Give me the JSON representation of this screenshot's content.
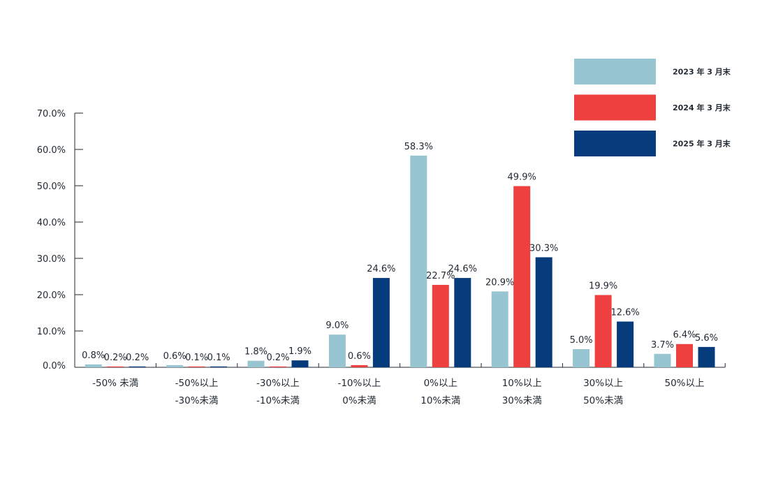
{
  "chart_data": {
    "type": "bar",
    "title": "",
    "xlabel": "",
    "ylabel": "",
    "ylim": [
      0,
      70
    ],
    "yticks": [
      "0.0%",
      "10.0%",
      "20.0%",
      "30.0%",
      "40.0%",
      "50.0%",
      "60.0%",
      "70.0%"
    ],
    "categories": [
      [
        "-50% 未満"
      ],
      [
        "-50%以上",
        "-30%未満"
      ],
      [
        "-30%以上",
        "-10%未満"
      ],
      [
        "-10%以上",
        "0%未満"
      ],
      [
        "0%以上",
        "10%未満"
      ],
      [
        "10%以上",
        "30%未満"
      ],
      [
        "30%以上",
        "50%未満"
      ],
      [
        "50%以上"
      ]
    ],
    "series": [
      {
        "name": "2023 年 3 月末",
        "color": "#98c5d2",
        "values": [
          0.8,
          0.6,
          1.8,
          9.0,
          58.3,
          20.9,
          5.0,
          3.7
        ],
        "labels": [
          "0.8%",
          "0.6%",
          "1.8%",
          "9.0%",
          "58.3%",
          "20.9%",
          "5.0%",
          "3.7%"
        ]
      },
      {
        "name": "2024 年 3 月末",
        "color": "#ef4040",
        "values": [
          0.2,
          0.1,
          0.2,
          0.6,
          22.7,
          49.9,
          19.9,
          6.4
        ],
        "labels": [
          "0.2%",
          "0.1%",
          "0.2%",
          "0.6%",
          "22.7%",
          "49.9%",
          "19.9%",
          "6.4%"
        ]
      },
      {
        "name": "2025 年 3 月末",
        "color": "#063b7c",
        "values": [
          0.2,
          0.1,
          1.9,
          24.6,
          24.6,
          30.3,
          12.6,
          5.6
        ],
        "labels": [
          "0.2%",
          "0.1%",
          "1.9%",
          "24.6%",
          "24.6%",
          "30.3%",
          "12.6%",
          "5.6%"
        ]
      }
    ],
    "grid": false,
    "legend": "top-right"
  }
}
